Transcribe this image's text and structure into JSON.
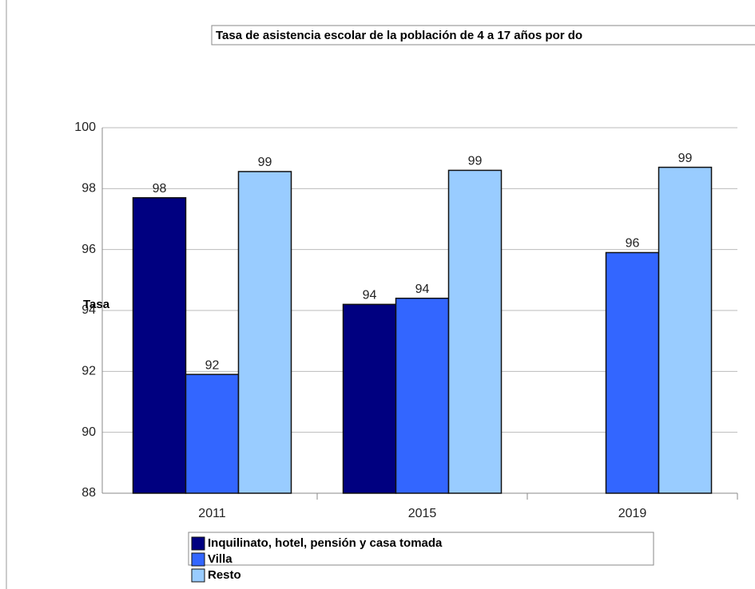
{
  "chart_data": {
    "type": "bar",
    "title": "Tasa de asistencia escolar de la población de 4 a 17 años por do",
    "y_label": "Tasa",
    "categories": [
      "2011",
      "2015",
      "2019"
    ],
    "series": [
      {
        "name": "Inquilinato, hotel, pensión y casa tomada",
        "color": "#000080",
        "values": [
          97.7,
          94.2,
          null
        ],
        "value_labels": [
          "98",
          "94",
          null
        ]
      },
      {
        "name": "Villa",
        "color": "#3366ff",
        "values": [
          91.9,
          94.4,
          95.9
        ],
        "value_labels": [
          "92",
          "94",
          "96"
        ]
      },
      {
        "name": "Resto",
        "color": "#99ccff",
        "values": [
          98.56,
          98.6,
          98.7
        ],
        "value_labels": [
          "99",
          "99",
          "99"
        ]
      }
    ],
    "ylim": [
      88,
      100
    ],
    "yticks": [
      88,
      90,
      92,
      94,
      96,
      98,
      100
    ],
    "grid": true
  }
}
